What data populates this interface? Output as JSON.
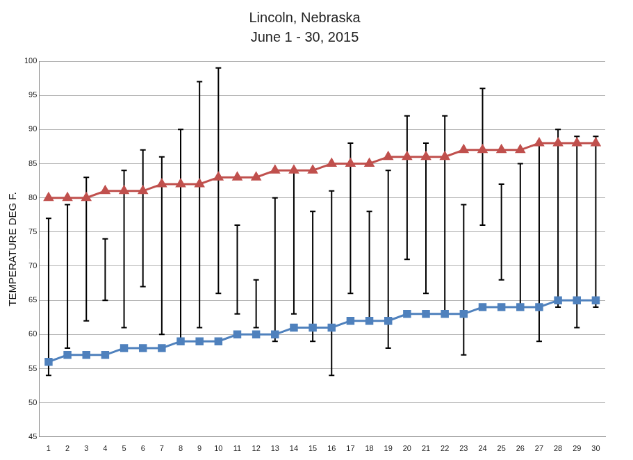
{
  "chart_data": {
    "type": "line",
    "title": "Lincoln, Nebraska",
    "subtitle": "June 1 - 30, 2015",
    "y_label": "TEMPERATURE DEG F.",
    "categories": [
      "1",
      "2",
      "3",
      "4",
      "5",
      "6",
      "7",
      "8",
      "9",
      "10",
      "11",
      "12",
      "13",
      "14",
      "15",
      "16",
      "17",
      "18",
      "19",
      "20",
      "21",
      "22",
      "23",
      "24",
      "25",
      "26",
      "27",
      "28",
      "29",
      "30"
    ],
    "series": [
      {
        "color": "#c0504d",
        "marker": "triangle",
        "values": [
          80,
          80,
          80,
          81,
          81,
          81,
          82,
          82,
          82,
          83,
          83,
          83,
          84,
          84,
          84,
          85,
          85,
          85,
          86,
          86,
          86,
          86,
          87,
          87,
          87,
          87,
          88,
          88,
          88,
          88
        ]
      },
      {
        "color": "#4f81bd",
        "marker": "square",
        "values": [
          56,
          57,
          57,
          57,
          58,
          58,
          58,
          59,
          59,
          59,
          60,
          60,
          60,
          61,
          61,
          61,
          62,
          62,
          62,
          63,
          63,
          63,
          63,
          64,
          64,
          64,
          64,
          65,
          65,
          65
        ]
      }
    ],
    "daily_range": {
      "color": "#000000",
      "low": [
        54,
        58,
        62,
        65,
        61,
        67,
        60,
        59,
        61,
        66,
        63,
        61,
        59,
        63,
        59,
        54,
        66,
        62,
        58,
        71,
        66,
        63,
        57,
        76,
        68,
        64,
        59,
        64,
        61,
        64
      ],
      "high": [
        77,
        79,
        83,
        74,
        84,
        87,
        86,
        90,
        97,
        99,
        76,
        68,
        80,
        84,
        78,
        81,
        88,
        78,
        84,
        92,
        88,
        92,
        79,
        96,
        82,
        85,
        88,
        90,
        89,
        89
      ]
    },
    "ylim": [
      45,
      100
    ],
    "yticks": [
      45,
      50,
      55,
      60,
      65,
      70,
      75,
      80,
      85,
      90,
      95,
      100
    ],
    "grid": true
  }
}
